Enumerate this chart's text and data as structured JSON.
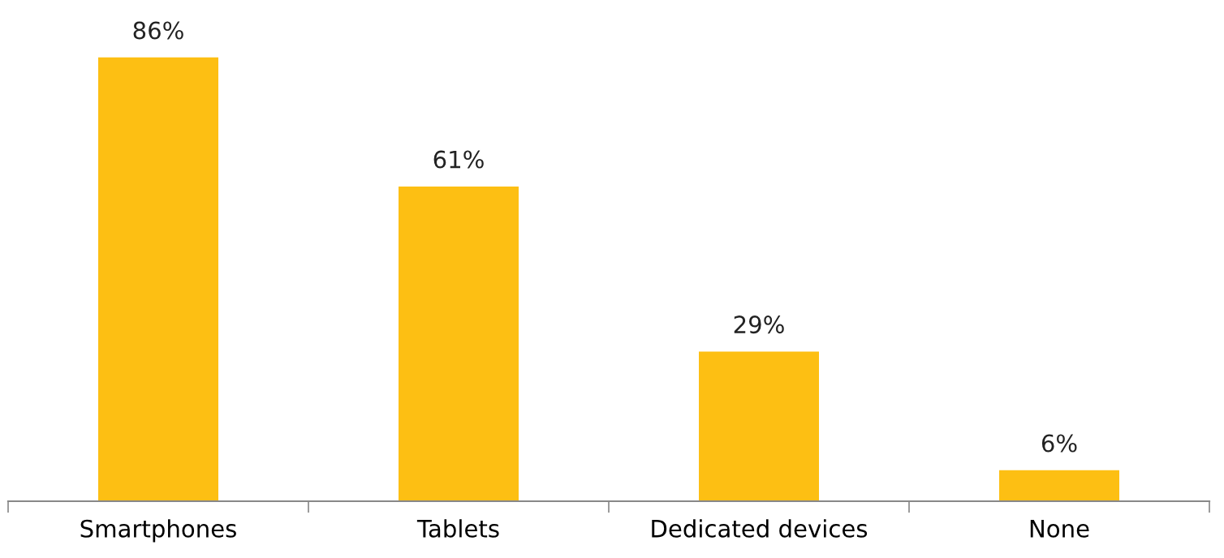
{
  "chart_data": {
    "type": "bar",
    "categories": [
      "Smartphones",
      "Tablets",
      "Dedicated devices",
      "None"
    ],
    "values": [
      86,
      61,
      29,
      6
    ],
    "value_labels": [
      "86%",
      "61%",
      "29%",
      "6%"
    ],
    "color": "#fdbf13",
    "grid": false,
    "legend": false
  }
}
